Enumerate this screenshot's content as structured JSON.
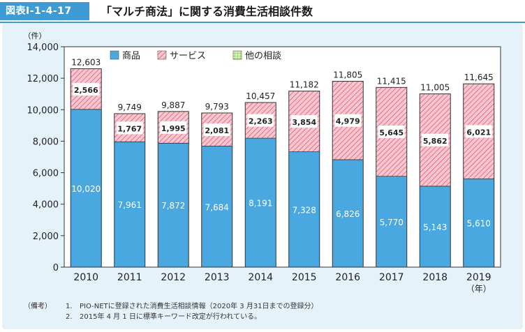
{
  "figure": {
    "badge": "図表Ⅰ-1-4-17",
    "title": "「マルチ商法」に関する消費生活相談件数"
  },
  "chart_data": {
    "type": "bar",
    "stacked": true,
    "y_unit": "（件）",
    "x_unit": "（年）",
    "categories": [
      "2010",
      "2011",
      "2012",
      "2013",
      "2014",
      "2015",
      "2016",
      "2017",
      "2018",
      "2019"
    ],
    "series": [
      {
        "name": "商品",
        "values": [
          10020,
          7961,
          7872,
          7684,
          8191,
          7328,
          6826,
          5770,
          5143,
          5610
        ],
        "labels": [
          "10,020",
          "7,961",
          "7,872",
          "7,684",
          "8,191",
          "7,328",
          "6,826",
          "5,770",
          "5,143",
          "5,610"
        ],
        "color": "#4aa8e0"
      },
      {
        "name": "サービス",
        "values": [
          2566,
          1767,
          1995,
          2081,
          2263,
          3854,
          4979,
          5645,
          5862,
          6021
        ],
        "labels": [
          "2,566",
          "1,767",
          "1,995",
          "2,081",
          "2,263",
          "3,854",
          "4,979",
          "5,645",
          "5,862",
          "6,021"
        ],
        "color": "#f7b8c4",
        "pattern": "diagonal-hatch",
        "hatch_color": "#d4495f"
      },
      {
        "name": "他の相談",
        "values": [
          17,
          21,
          20,
          28,
          3,
          0,
          0,
          0,
          0,
          14
        ],
        "color": "#c8e6a0",
        "pattern": "grid"
      }
    ],
    "totals": [
      "12,603",
      "9,749",
      "9,887",
      "9,793",
      "10,457",
      "11,182",
      "11,805",
      "11,415",
      "11,005",
      "11,645"
    ],
    "total_values": [
      12603,
      9749,
      9887,
      9793,
      10457,
      11182,
      11805,
      11415,
      11005,
      11645
    ],
    "yticks": [
      "0",
      "2,000",
      "4,000",
      "6,000",
      "8,000",
      "10,000",
      "12,000",
      "14,000"
    ],
    "ylim": [
      0,
      14000
    ],
    "legend_position": "top-left inside plot"
  },
  "notes": {
    "head": "（備考）",
    "items": [
      {
        "num": "1.",
        "text": "PIO-NETに登録された消費生活相談情報（2020年 3 月31日までの登録分）"
      },
      {
        "num": "2.",
        "text": "2015年 4 月 1 日に標準キーワード改定が行われている。"
      }
    ]
  }
}
